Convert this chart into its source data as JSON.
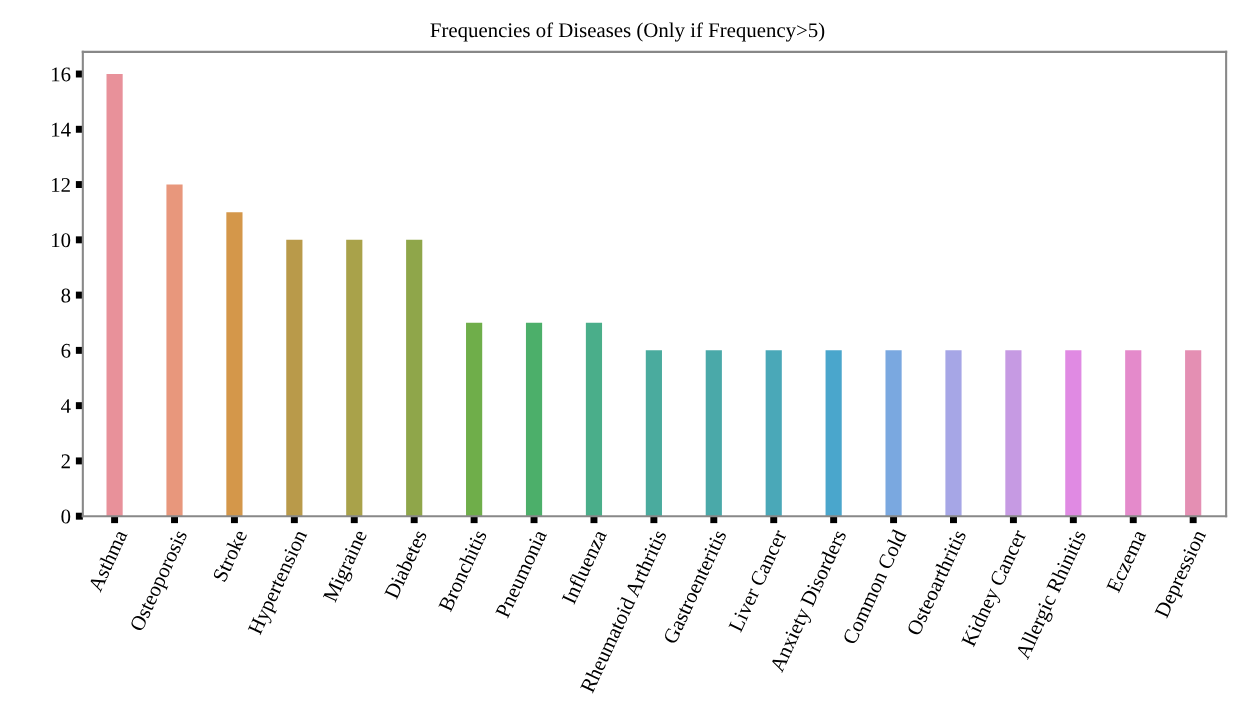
{
  "chart_data": {
    "type": "bar",
    "title": "Frequencies of Diseases (Only if Frequency>5)",
    "categories": [
      "Asthma",
      "Osteoporosis",
      "Stroke",
      "Hypertension",
      "Migraine",
      "Diabetes",
      "Bronchitis",
      "Pneumonia",
      "Influenza",
      "Rheumatoid Arthritis",
      "Gastroenteritis",
      "Liver Cancer",
      "Anxiety Disorders",
      "Common Cold",
      "Osteoarthritis",
      "Kidney Cancer",
      "Allergic Rhinitis",
      "Eczema",
      "Depression"
    ],
    "values": [
      16,
      12,
      11,
      10,
      10,
      10,
      7,
      7,
      7,
      6,
      6,
      6,
      6,
      6,
      6,
      6,
      6,
      6,
      6
    ],
    "colors": [
      "#e8919a",
      "#e8977c",
      "#d4974a",
      "#b99a4a",
      "#a9a24a",
      "#8fa64a",
      "#6fae4a",
      "#4caf6a",
      "#4aae8a",
      "#4aab9e",
      "#4aa9a9",
      "#4aa8b8",
      "#4aa6cc",
      "#7aa8e0",
      "#a6a6e6",
      "#c69ae3",
      "#e08ae3",
      "#e48acb",
      "#e48fb3"
    ],
    "ylim": [
      0,
      16.8
    ],
    "yticks": [
      0,
      2,
      4,
      6,
      8,
      10,
      12,
      14,
      16
    ],
    "grid": false,
    "legend": false
  }
}
